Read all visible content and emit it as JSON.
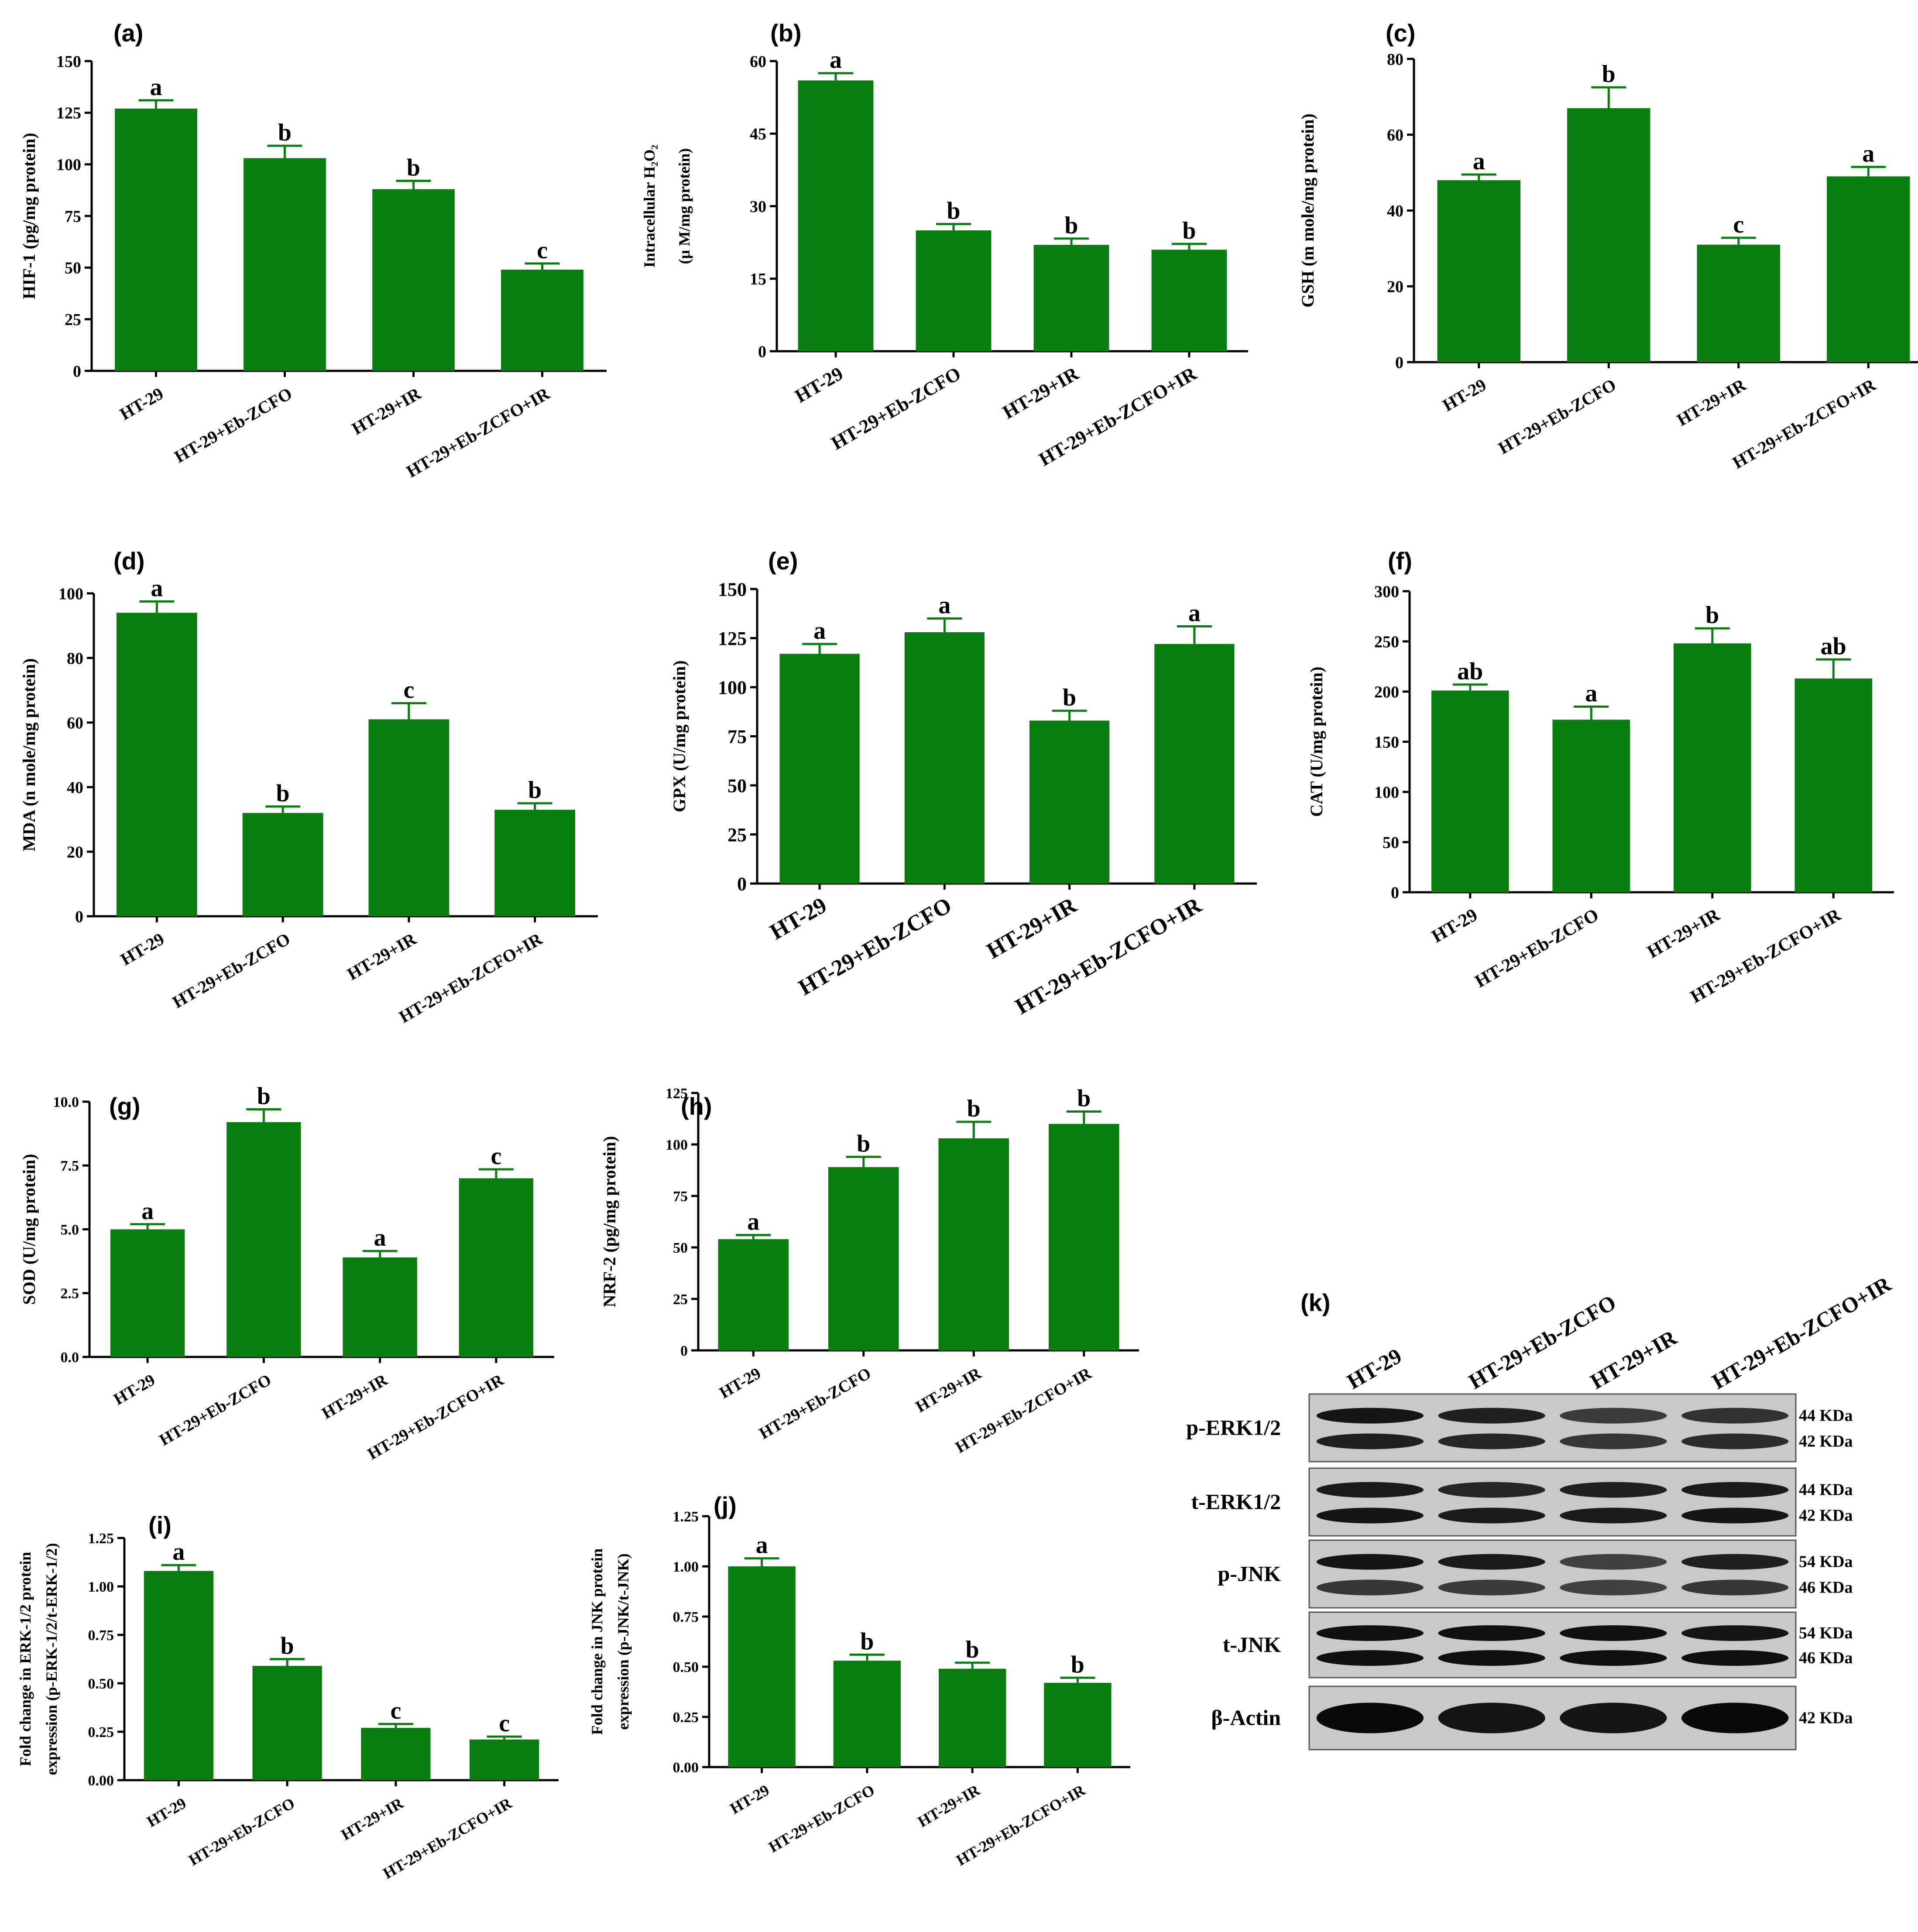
{
  "colors": {
    "bar": "#0a7d10",
    "axis": "#000000",
    "error": "#0a7d10"
  },
  "chart_data": [
    {
      "id": "a",
      "panel_label": "(a)",
      "type": "bar",
      "ylabel": "HIF-1 (pg/mg protein)",
      "categories": [
        "HT-29",
        "HT-29+Eb-ZCFO",
        "HT-29+IR",
        "HT-29+Eb-ZCFO+IR"
      ],
      "values": [
        127,
        103,
        88,
        49
      ],
      "errors": [
        4,
        6,
        4,
        3
      ],
      "significance": [
        "a",
        "b",
        "b",
        "c"
      ],
      "ylim": [
        0,
        150
      ],
      "yticks": [
        "0",
        "25",
        "50",
        "75",
        "100",
        "125",
        "150"
      ]
    },
    {
      "id": "b",
      "panel_label": "(b)",
      "type": "bar",
      "ylabel": "Intracellular H₂O₂",
      "ylabel2": "(μ M/mg protein)",
      "categories": [
        "HT-29",
        "HT-29+Eb-ZCFO",
        "HT-29+IR",
        "HT-29+Eb-ZCFO+IR"
      ],
      "values": [
        56,
        25,
        22,
        21
      ],
      "errors": [
        1.5,
        1.3,
        1.3,
        1.2
      ],
      "significance": [
        "a",
        "b",
        "b",
        "b"
      ],
      "ylim": [
        0,
        60
      ],
      "yticks": [
        "0",
        "15",
        "30",
        "45",
        "60"
      ]
    },
    {
      "id": "c",
      "panel_label": "(c)",
      "type": "bar",
      "ylabel": "GSH (m mole/mg protein)",
      "categories": [
        "HT-29",
        "HT-29+Eb-ZCFO",
        "HT-29+IR",
        "HT-29+Eb-ZCFO+IR"
      ],
      "values": [
        48,
        67,
        31,
        49
      ],
      "errors": [
        1.5,
        5.5,
        1.8,
        2.5
      ],
      "significance": [
        "a",
        "b",
        "c",
        "a"
      ],
      "ylim": [
        0,
        80
      ],
      "yticks": [
        "0",
        "20",
        "40",
        "60",
        "80"
      ]
    },
    {
      "id": "d",
      "panel_label": "(d)",
      "type": "bar",
      "ylabel": "MDA (n mole/mg protein)",
      "categories": [
        "HT-29",
        "HT-29+Eb-ZCFO",
        "HT-29+IR",
        "HT-29+Eb-ZCFO+IR"
      ],
      "values": [
        94,
        32,
        61,
        33
      ],
      "errors": [
        3.5,
        2,
        5,
        2
      ],
      "significance": [
        "a",
        "b",
        "c",
        "b"
      ],
      "ylim": [
        0,
        100
      ],
      "yticks": [
        "0",
        "20",
        "40",
        "60",
        "80",
        "100"
      ]
    },
    {
      "id": "e",
      "panel_label": "(e)",
      "type": "bar",
      "ylabel": "GPX (U/mg protein)",
      "categories": [
        "HT-29",
        "HT-29+Eb-ZCFO",
        "HT-29+IR",
        "HT-29+Eb-ZCFO+IR"
      ],
      "values": [
        117,
        128,
        83,
        122
      ],
      "errors": [
        5,
        7,
        5,
        9
      ],
      "significance": [
        "a",
        "a",
        "b",
        "a"
      ],
      "ylim": [
        0,
        150
      ],
      "yticks": [
        "0",
        "25",
        "50",
        "75",
        "100",
        "125",
        "150"
      ]
    },
    {
      "id": "f",
      "panel_label": "(f)",
      "type": "bar",
      "ylabel": "CAT (U/mg protein)",
      "categories": [
        "HT-29",
        "HT-29+Eb-ZCFO",
        "HT-29+IR",
        "HT-29+Eb-ZCFO+IR"
      ],
      "values": [
        201,
        172,
        248,
        213
      ],
      "errors": [
        6,
        13,
        15,
        19
      ],
      "significance": [
        "ab",
        "a",
        "b",
        "ab"
      ],
      "ylim": [
        0,
        300
      ],
      "yticks": [
        "0",
        "50",
        "100",
        "150",
        "200",
        "250",
        "300"
      ]
    },
    {
      "id": "g",
      "panel_label": "(g)",
      "type": "bar",
      "ylabel": "SOD (U/mg protein)",
      "categories": [
        "HT-29",
        "HT-29+Eb-ZCFO",
        "HT-29+IR",
        "HT-29+Eb-ZCFO+IR"
      ],
      "values": [
        5.0,
        9.2,
        3.9,
        7.0
      ],
      "errors": [
        0.2,
        0.5,
        0.25,
        0.35
      ],
      "significance": [
        "a",
        "b",
        "a",
        "c"
      ],
      "ylim": [
        0,
        10
      ],
      "yticks": [
        "0.0",
        "2.5",
        "5.0",
        "7.5",
        "10.0"
      ]
    },
    {
      "id": "h",
      "panel_label": "(h)",
      "type": "bar",
      "ylabel": "NRF-2 (pg/mg protein)",
      "categories": [
        "HT-29",
        "HT-29+Eb-ZCFO",
        "HT-29+IR",
        "HT-29+Eb-ZCFO+IR"
      ],
      "values": [
        54,
        89,
        103,
        110
      ],
      "errors": [
        2,
        5,
        8,
        6
      ],
      "significance": [
        "a",
        "b",
        "b",
        "b"
      ],
      "ylim": [
        0,
        125
      ],
      "yticks": [
        "0",
        "25",
        "50",
        "75",
        "100",
        "125"
      ]
    },
    {
      "id": "i",
      "panel_label": "(i)",
      "type": "bar",
      "ylabel": "Fold change in ERK-1/2 protein",
      "ylabel2": "expression (p-ERK-1/2/t-ERK-1/2)",
      "categories": [
        "HT-29",
        "HT-29+Eb-ZCFO",
        "HT-29+IR",
        "HT-29+Eb-ZCFO+IR"
      ],
      "values": [
        1.08,
        0.59,
        0.27,
        0.21
      ],
      "errors": [
        0.03,
        0.035,
        0.02,
        0.015
      ],
      "significance": [
        "a",
        "b",
        "c",
        "c"
      ],
      "ylim": [
        0,
        1.25
      ],
      "yticks": [
        "0.00",
        "0.25",
        "0.50",
        "0.75",
        "1.00",
        "1.25"
      ]
    },
    {
      "id": "j",
      "panel_label": "(j)",
      "type": "bar",
      "ylabel": "Fold change in JNK protein",
      "ylabel2": "expression (p-JNK/t-JNK)",
      "categories": [
        "HT-29",
        "HT-29+Eb-ZCFO",
        "HT-29+IR",
        "HT-29+Eb-ZCFO+IR"
      ],
      "values": [
        1.0,
        0.53,
        0.49,
        0.42
      ],
      "errors": [
        0.04,
        0.03,
        0.03,
        0.025
      ],
      "significance": [
        "a",
        "b",
        "b",
        "b"
      ],
      "ylim": [
        0,
        1.25
      ],
      "yticks": [
        "0.00",
        "0.25",
        "0.50",
        "0.75",
        "1.00",
        "1.25"
      ]
    }
  ],
  "blot": {
    "panel_label": "(k)",
    "lanes": [
      "HT-29",
      "HT-29+Eb-ZCFO",
      "HT-29+IR",
      "HT-29+Eb-ZCFO+IR"
    ],
    "rows": [
      {
        "label": "p-ERK1/2",
        "kda": [
          "44 KDa",
          "42 KDa"
        ],
        "intensity": [
          [
            0.9,
            0.8,
            0.55,
            0.65
          ],
          [
            0.8,
            0.75,
            0.6,
            0.7
          ]
        ]
      },
      {
        "label": "t-ERK1/2",
        "kda": [
          "44 KDa",
          "42 KDa"
        ],
        "intensity": [
          [
            0.85,
            0.75,
            0.8,
            0.85
          ],
          [
            0.9,
            0.85,
            0.85,
            0.9
          ]
        ]
      },
      {
        "label": "p-JNK",
        "kda": [
          "54 KDa",
          "46 KDa"
        ],
        "intensity": [
          [
            0.9,
            0.85,
            0.5,
            0.8
          ],
          [
            0.6,
            0.55,
            0.5,
            0.6
          ]
        ]
      },
      {
        "label": "t-JNK",
        "kda": [
          "54 KDa",
          "46 KDa"
        ],
        "intensity": [
          [
            0.95,
            0.95,
            0.95,
            0.9
          ],
          [
            0.95,
            0.95,
            0.95,
            0.95
          ]
        ]
      },
      {
        "label": "β-Actin",
        "kda": [
          "42 KDa"
        ],
        "intensity": [
          [
            1.0,
            0.9,
            0.9,
            1.0
          ]
        ]
      }
    ]
  }
}
